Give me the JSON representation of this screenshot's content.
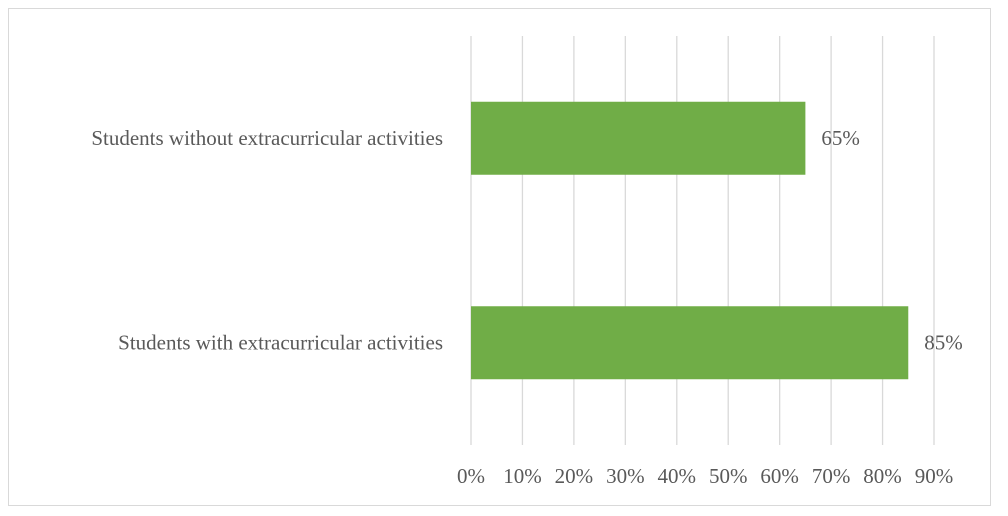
{
  "chart_data": {
    "type": "bar",
    "orientation": "horizontal",
    "categories": [
      "Students without extracurricular activities",
      "Students with extracurricular activities"
    ],
    "values": [
      65,
      85
    ],
    "value_labels": [
      "65%",
      "85%"
    ],
    "color": "#70ad47",
    "xlim": [
      0,
      90
    ],
    "xticks": [
      {
        "value": 0,
        "label": "0%"
      },
      {
        "value": 10,
        "label": "10%"
      },
      {
        "value": 20,
        "label": "20%"
      },
      {
        "value": 30,
        "label": "30%"
      },
      {
        "value": 40,
        "label": "40%"
      },
      {
        "value": 50,
        "label": "50%"
      },
      {
        "value": 60,
        "label": "60%"
      },
      {
        "value": 70,
        "label": "70%"
      },
      {
        "value": 80,
        "label": "80%"
      },
      {
        "value": 90,
        "label": "90%"
      }
    ],
    "grid": true
  }
}
